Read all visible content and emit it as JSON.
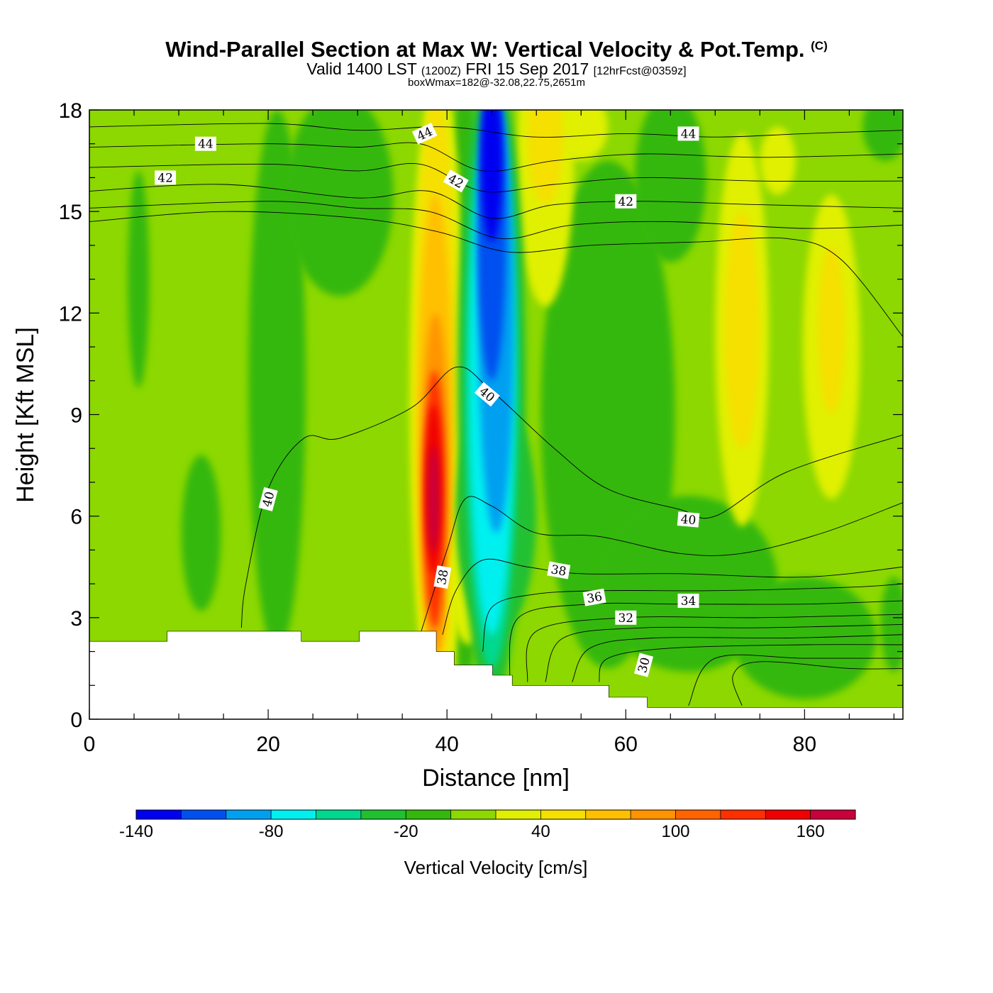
{
  "title": {
    "main": "Wind-Parallel Section at Max W: Vertical Velocity & Pot.Temp.",
    "copyright": "(C)",
    "valid_prefix": "Valid 1400 LST",
    "valid_zulu": "(1200Z)",
    "valid_date": "FRI 15 Sep 2017",
    "forecast": "[12hrFcst@0359z]",
    "boxwmax": "boxWmax=182@-32.08,22.75,2651m"
  },
  "chart_data": {
    "type": "heatmap",
    "xlabel": "Distance [nm]",
    "ylabel": "Height [Kft MSL]",
    "xlim": [
      0,
      91
    ],
    "ylim": [
      0,
      18
    ],
    "x_ticks": [
      0,
      20,
      40,
      60,
      80
    ],
    "y_ticks": [
      0,
      3,
      6,
      9,
      12,
      15,
      18
    ],
    "colorbar": {
      "title": "Vertical Velocity [cm/s]",
      "boundaries": [
        -140,
        -120,
        -100,
        -80,
        -60,
        -40,
        -20,
        0,
        20,
        40,
        60,
        80,
        100,
        120,
        140,
        160,
        180
      ],
      "tick_labels": [
        "-140",
        "-80",
        "-20",
        "40",
        "100",
        "160"
      ],
      "colors": [
        "#0000f0",
        "#0050f0",
        "#00a0f0",
        "#00f0f0",
        "#00d890",
        "#20c030",
        "#34b80c",
        "#8cd800",
        "#e0f000",
        "#f5e000",
        "#ffc000",
        "#ff9400",
        "#ff6400",
        "#ff3000",
        "#f00000",
        "#c8003c"
      ]
    },
    "w_max_cm_s": 182,
    "w_max_location": {
      "lat": -32.08,
      "lon": 22.75,
      "height_m": 2651
    },
    "vertical_velocity_features": [
      {
        "kind": "updraft",
        "x": 39,
        "y_range": [
          2.5,
          18
        ],
        "peak_cm_s": 182
      },
      {
        "kind": "downdraft",
        "x": 45,
        "y_range": [
          4,
          18
        ],
        "min_cm_s": -130
      },
      {
        "kind": "updraft",
        "x": 51,
        "y_range": [
          13,
          18
        ],
        "peak_cm_s": 60
      },
      {
        "kind": "updraft",
        "x": 73,
        "y_range": [
          6,
          17
        ],
        "peak_cm_s": 60
      },
      {
        "kind": "updraft",
        "x": 83,
        "y_range": [
          7,
          14
        ],
        "peak_cm_s": 55
      },
      {
        "kind": "sinking",
        "x": 65,
        "y_range": [
          0.5,
          4
        ],
        "min_cm_s": -20
      }
    ],
    "theta_contours": [
      {
        "level": 30,
        "label": "30"
      },
      {
        "level": 32,
        "label": "32"
      },
      {
        "level": 34,
        "label": "34"
      },
      {
        "level": 36,
        "label": "36"
      },
      {
        "level": 38,
        "label": "38"
      },
      {
        "level": 40,
        "label": "40"
      },
      {
        "level": 42,
        "label": "42"
      },
      {
        "level": 44,
        "label": "44"
      }
    ],
    "terrain_kft": [
      [
        0,
        2.3
      ],
      [
        8.7,
        2.3
      ],
      [
        8.7,
        2.6
      ],
      [
        23.7,
        2.6
      ],
      [
        23.7,
        2.3
      ],
      [
        30.2,
        2.3
      ],
      [
        30.2,
        2.6
      ],
      [
        38.8,
        2.6
      ],
      [
        38.8,
        2.0
      ],
      [
        40.8,
        2.0
      ],
      [
        40.8,
        1.6
      ],
      [
        45.1,
        1.6
      ],
      [
        45.1,
        1.3
      ],
      [
        47.3,
        1.3
      ],
      [
        47.3,
        1.0
      ],
      [
        58.1,
        1.0
      ],
      [
        58.1,
        0.65
      ],
      [
        62.4,
        0.65
      ],
      [
        62.4,
        0.35
      ],
      [
        91,
        0.35
      ]
    ]
  }
}
